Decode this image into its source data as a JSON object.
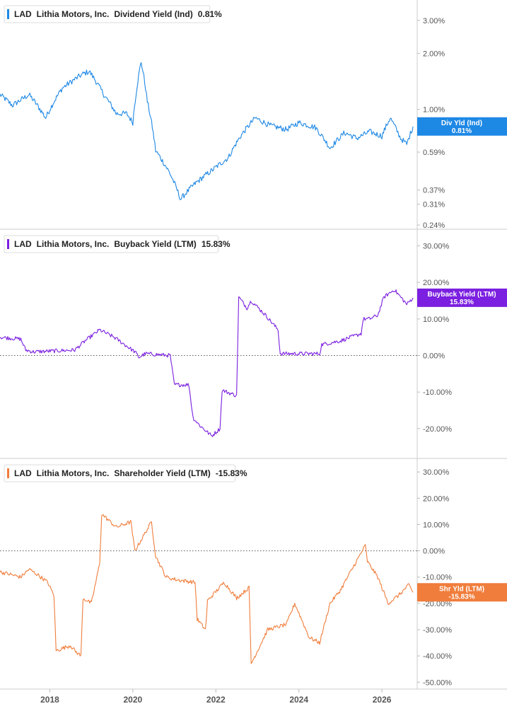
{
  "chart_data": [
    {
      "type": "line",
      "ticker": "LAD",
      "company": "Lithia Motors, Inc.",
      "metric": "Dividend Yield (Ind)",
      "last_value": "0.81%",
      "flag_label": "Div Yld (Ind)",
      "flag_value": "0.81%",
      "color": "#1e88e5",
      "yscale": "log",
      "ylim": [
        0.24,
        3.6
      ],
      "yticks": [
        "3.00%",
        "2.00%",
        "1.00%",
        "0.59%",
        "0.37%",
        "0.31%",
        "0.24%"
      ],
      "ytick_values": [
        3.0,
        2.0,
        1.0,
        0.59,
        0.37,
        0.31,
        0.24
      ],
      "zero_line": false,
      "x": [
        2016.8,
        2017.1,
        2017.5,
        2017.9,
        2018.3,
        2018.8,
        2018.95,
        2019.3,
        2019.6,
        2019.85,
        2020.0,
        2020.2,
        2020.35,
        2020.55,
        2020.9,
        2021.15,
        2021.5,
        2021.9,
        2022.3,
        2022.6,
        2022.95,
        2023.3,
        2023.7,
        2024.0,
        2024.4,
        2024.75,
        2025.1,
        2025.4,
        2025.7,
        2026.0,
        2026.2,
        2026.45,
        2026.6,
        2026.75
      ],
      "y": [
        1.2,
        1.05,
        1.2,
        0.9,
        1.3,
        1.55,
        1.6,
        1.2,
        0.95,
        0.95,
        0.85,
        1.8,
        1.1,
        0.6,
        0.45,
        0.33,
        0.4,
        0.47,
        0.55,
        0.72,
        0.9,
        0.82,
        0.78,
        0.85,
        0.8,
        0.62,
        0.75,
        0.7,
        0.76,
        0.72,
        0.9,
        0.7,
        0.65,
        0.81
      ]
    },
    {
      "type": "line",
      "ticker": "LAD",
      "company": "Lithia Motors, Inc.",
      "metric": "Buyback Yield (LTM)",
      "last_value": "15.83%",
      "flag_label": "Buyback Yield (LTM)",
      "flag_value": "15.83%",
      "color": "#7b1fe0",
      "yscale": "linear",
      "ylim": [
        -27,
        33
      ],
      "yticks": [
        "30.00%",
        "20.00%",
        "10.00%",
        "0.00%",
        "-10.00%",
        "-20.00%"
      ],
      "ytick_values": [
        30,
        20,
        10,
        0,
        -10,
        -20
      ],
      "zero_line": true,
      "x": [
        2016.8,
        2017.3,
        2017.42,
        2017.6,
        2018.6,
        2018.85,
        2019.2,
        2019.55,
        2020.05,
        2020.15,
        2020.3,
        2020.9,
        2021.0,
        2021.35,
        2021.45,
        2021.6,
        2021.9,
        2022.1,
        2022.15,
        2022.5,
        2022.55,
        2022.75,
        2022.85,
        2023.2,
        2023.5,
        2023.55,
        2024.5,
        2024.55,
        2025.0,
        2025.5,
        2025.55,
        2025.7,
        2025.9,
        2026.05,
        2026.3,
        2026.6,
        2026.75
      ],
      "y": [
        5,
        4.5,
        1.5,
        1,
        1.5,
        4,
        7,
        5,
        1,
        -0.5,
        0.5,
        0,
        -8,
        -8,
        -17,
        -19,
        -22,
        -20,
        -9.5,
        -11,
        16,
        13,
        15,
        11,
        7,
        0.5,
        0.5,
        3,
        4,
        6,
        10,
        10,
        11,
        16,
        18,
        14,
        15.8
      ]
    },
    {
      "type": "line",
      "ticker": "LAD",
      "company": "Lithia Motors, Inc.",
      "metric": "Shareholder Yield (LTM)",
      "last_value": "-15.83%",
      "flag_label": "Shr Yld (LTM)",
      "flag_value": "-15.83%",
      "color": "#f07d3c",
      "yscale": "linear",
      "ylim": [
        -51,
        33
      ],
      "yticks": [
        "30.00%",
        "20.00%",
        "10.00%",
        "0.00%",
        "-10.00%",
        "-20.00%",
        "-30.00%",
        "-40.00%",
        "-50.00%"
      ],
      "ytick_values": [
        30,
        20,
        10,
        0,
        -10,
        -20,
        -30,
        -40,
        -50
      ],
      "zero_line": true,
      "x": [
        2016.8,
        2017.3,
        2017.5,
        2017.7,
        2017.95,
        2018.1,
        2018.15,
        2018.5,
        2018.6,
        2018.75,
        2018.8,
        2019.0,
        2019.2,
        2019.25,
        2019.6,
        2019.95,
        2020.05,
        2020.45,
        2020.55,
        2020.8,
        2021.05,
        2021.5,
        2021.55,
        2021.75,
        2021.8,
        2022.2,
        2022.5,
        2022.8,
        2022.85,
        2023.25,
        2023.7,
        2023.9,
        2024.25,
        2024.5,
        2024.75,
        2025.0,
        2025.35,
        2025.6,
        2025.65,
        2025.9,
        2026.15,
        2026.4,
        2026.65,
        2026.75
      ],
      "y": [
        -8,
        -10,
        -7,
        -9,
        -12,
        -17,
        -38,
        -36,
        -38,
        -40,
        -18,
        -20,
        -5,
        14,
        9,
        11,
        0,
        11,
        -2,
        -10,
        -11,
        -12,
        -26,
        -30,
        -19,
        -12,
        -18,
        -14,
        -43,
        -30,
        -28,
        -20,
        -33,
        -35,
        -20,
        -15,
        -5,
        2,
        -4,
        -10,
        -20,
        -17,
        -13,
        -15.8
      ]
    }
  ],
  "x_axis": {
    "ticks": [
      "2018",
      "2020",
      "2022",
      "2024",
      "2026"
    ],
    "tick_values": [
      2018,
      2020,
      2022,
      2024,
      2026
    ],
    "xlim": [
      2016.8,
      2026.85
    ]
  }
}
